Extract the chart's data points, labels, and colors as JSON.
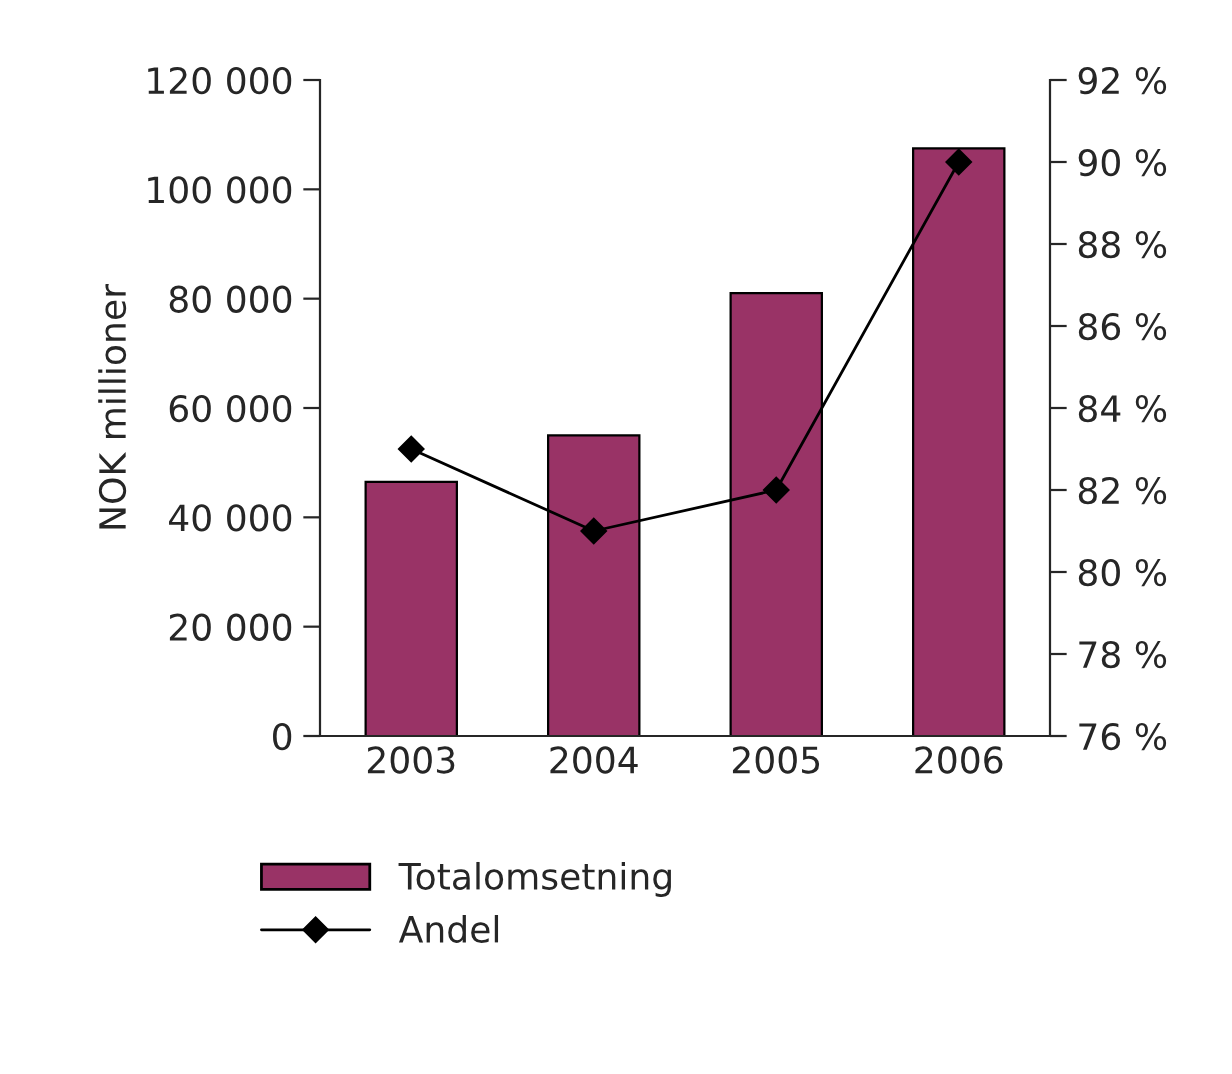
{
  "chart_data": {
    "type": "bar",
    "ylabel": "NOK millioner",
    "categories": [
      "2003",
      "2004",
      "2005",
      "2006"
    ],
    "series": [
      {
        "name": "Totalomsetning",
        "color": "#993366",
        "values": [
          46500,
          55000,
          81000,
          107500
        ]
      },
      {
        "name": "Andel",
        "type": "line",
        "axis": "y2",
        "color": "#000000",
        "marker": "diamond",
        "values": [
          83,
          81,
          82,
          90
        ]
      }
    ],
    "ylim": [
      0,
      120000
    ],
    "yticks": [
      {
        "value": 0,
        "label": "0"
      },
      {
        "value": 20000,
        "label": "20 000"
      },
      {
        "value": 40000,
        "label": "40 000"
      },
      {
        "value": 60000,
        "label": "60 000"
      },
      {
        "value": 80000,
        "label": "80 000"
      },
      {
        "value": 100000,
        "label": "100 000"
      },
      {
        "value": 120000,
        "label": "120 000"
      }
    ],
    "y2lim": [
      76,
      92
    ],
    "y2ticks": [
      {
        "value": 76,
        "label": "76 %"
      },
      {
        "value": 78,
        "label": "78 %"
      },
      {
        "value": 80,
        "label": "80 %"
      },
      {
        "value": 82,
        "label": "82 %"
      },
      {
        "value": 84,
        "label": "84 %"
      },
      {
        "value": 86,
        "label": "86 %"
      },
      {
        "value": 88,
        "label": "88 %"
      },
      {
        "value": 90,
        "label": "90 %"
      },
      {
        "value": 92,
        "label": "92 %"
      }
    ],
    "grid": false,
    "legend": "bottom"
  }
}
